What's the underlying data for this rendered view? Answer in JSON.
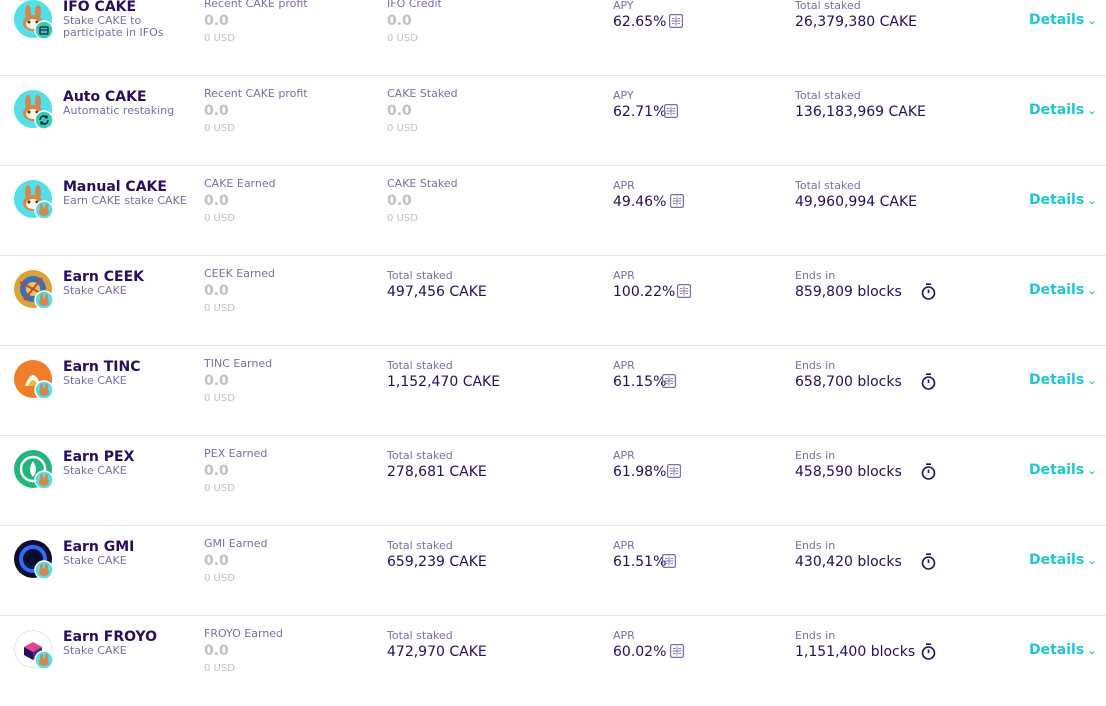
{
  "pools": [
    {
      "title": "IFO CAKE",
      "subtitle": "Stake CAKE to participate in IFOs",
      "badge_icon": "ifo-badge-icon",
      "col1": {
        "label": "Recent CAKE profit",
        "value": "0.0",
        "usd": "0 USD"
      },
      "col2": {
        "label": "IFO Credit",
        "value": "0.0",
        "usd": "0 USD"
      },
      "col3": {
        "label": "APY",
        "value": "62.65%"
      },
      "col4": {
        "label": "Total staked",
        "value": "26,379,380 CAKE"
      },
      "details_label": "Details"
    },
    {
      "title": "Auto CAKE",
      "subtitle": "Automatic restaking",
      "badge_icon": "refresh-badge-icon",
      "col1": {
        "label": "Recent CAKE profit",
        "value": "0.0",
        "usd": "0 USD"
      },
      "col2": {
        "label": "CAKE Staked",
        "value": "0.0",
        "usd": "0 USD"
      },
      "col3": {
        "label": "APY",
        "value": "62.71%"
      },
      "col4": {
        "label": "Total staked",
        "value": "136,183,969 CAKE"
      },
      "details_label": "Details"
    },
    {
      "title": "Manual CAKE",
      "subtitle": "Earn CAKE stake CAKE",
      "badge_icon": "cake-badge-icon",
      "col1": {
        "label": "CAKE Earned",
        "value": "0.0",
        "usd": "0 USD"
      },
      "col2": {
        "label": "CAKE Staked",
        "value": "0.0",
        "usd": "0 USD"
      },
      "col3": {
        "label": "APR",
        "value": "49.46%"
      },
      "col4": {
        "label": "Total staked",
        "value": "49,960,994 CAKE"
      },
      "details_label": "Details"
    },
    {
      "title": "Earn CEEK",
      "subtitle": "Stake CAKE",
      "token_icon": "ceek-token-icon",
      "col1": {
        "label": "CEEK Earned",
        "value": "0.0",
        "usd": "0 USD"
      },
      "col2": {
        "label": "Total staked",
        "value": "497,456 CAKE"
      },
      "col3": {
        "label": "APR",
        "value": "100.22%"
      },
      "col4": {
        "label": "Ends in",
        "value": "859,809 blocks"
      },
      "details_label": "Details"
    },
    {
      "title": "Earn TINC",
      "subtitle": "Stake CAKE",
      "token_icon": "tinc-token-icon",
      "col1": {
        "label": "TINC Earned",
        "value": "0.0",
        "usd": "0 USD"
      },
      "col2": {
        "label": "Total staked",
        "value": "1,152,470 CAKE"
      },
      "col3": {
        "label": "APR",
        "value": "61.15%"
      },
      "col4": {
        "label": "Ends in",
        "value": "658,700 blocks"
      },
      "details_label": "Details"
    },
    {
      "title": "Earn PEX",
      "subtitle": "Stake CAKE",
      "token_icon": "pex-token-icon",
      "col1": {
        "label": "PEX Earned",
        "value": "0.0",
        "usd": "0 USD"
      },
      "col2": {
        "label": "Total staked",
        "value": "278,681 CAKE"
      },
      "col3": {
        "label": "APR",
        "value": "61.98%"
      },
      "col4": {
        "label": "Ends in",
        "value": "458,590 blocks"
      },
      "details_label": "Details"
    },
    {
      "title": "Earn GMI",
      "subtitle": "Stake CAKE",
      "token_icon": "gmi-token-icon",
      "col1": {
        "label": "GMI Earned",
        "value": "0.0",
        "usd": "0 USD"
      },
      "col2": {
        "label": "Total staked",
        "value": "659,239 CAKE"
      },
      "col3": {
        "label": "APR",
        "value": "61.51%"
      },
      "col4": {
        "label": "Ends in",
        "value": "430,420 blocks"
      },
      "details_label": "Details"
    },
    {
      "title": "Earn FROYO",
      "subtitle": "Stake CAKE",
      "token_icon": "froyo-token-icon",
      "col1": {
        "label": "FROYO Earned",
        "value": "0.0",
        "usd": "0 USD"
      },
      "col2": {
        "label": "Total staked",
        "value": "472,970 CAKE"
      },
      "col3": {
        "label": "APR",
        "value": "60.02%"
      },
      "col4": {
        "label": "Ends in",
        "value": "1,151,400 blocks"
      },
      "details_label": "Details"
    }
  ],
  "colors": {
    "title": "#280d5f",
    "label": "#7a6eaa",
    "disabled": "#bdc2c4",
    "accent": "#1fc7d4",
    "divider": "#e7e3eb"
  }
}
